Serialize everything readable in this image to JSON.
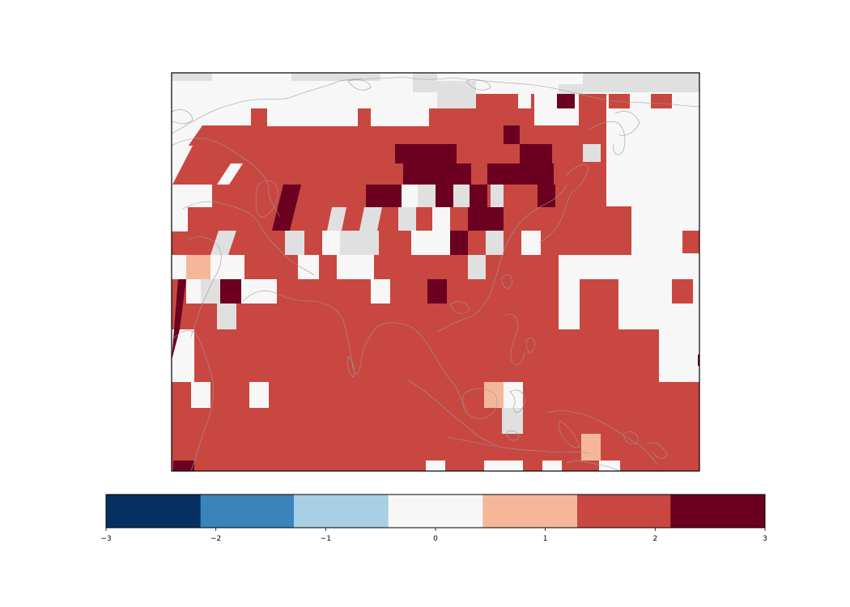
{
  "map": {
    "region": "Asia and the western Pacific",
    "projection": "non-rectangular (curved grid rows)",
    "grid_cell_deg": 5,
    "colors": {
      "land_outline": "#9a9a9a",
      "background": "#f7f7f7",
      "frame": "#000000"
    },
    "legend_note": "Discrete diverging colorbar, RdBu reversed, 7 bins"
  },
  "colorbar": {
    "orientation": "horizontal",
    "range": [
      -3,
      3
    ],
    "bins": [
      {
        "from": -3.0,
        "to": -2.14,
        "color": "#053061"
      },
      {
        "from": -2.14,
        "to": -1.29,
        "color": "#3a84bc"
      },
      {
        "from": -1.29,
        "to": -0.43,
        "color": "#a8cfe4"
      },
      {
        "from": -0.43,
        "to": 0.43,
        "color": "#f7f7f7"
      },
      {
        "from": 0.43,
        "to": 1.29,
        "color": "#f5b799"
      },
      {
        "from": 1.29,
        "to": 2.14,
        "color": "#c94741"
      },
      {
        "from": 2.14,
        "to": 3.0,
        "color": "#6b0020"
      }
    ],
    "ticks": [
      {
        "value": -3,
        "label": "−3"
      },
      {
        "value": -2,
        "label": "−2"
      },
      {
        "value": -1,
        "label": "−1"
      },
      {
        "value": 0,
        "label": "0"
      },
      {
        "value": 1,
        "label": "1"
      },
      {
        "value": 2,
        "label": "2"
      },
      {
        "value": 3,
        "label": "3"
      }
    ]
  },
  "masked_color": "#e0e0e0"
}
